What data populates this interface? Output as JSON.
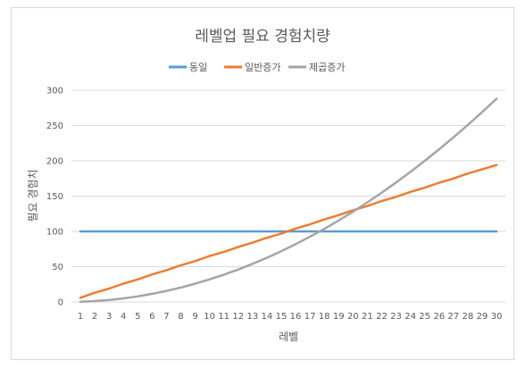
{
  "chart_data": {
    "type": "line",
    "title": "레벨업 필요 경험치량",
    "xlabel": "레벨",
    "ylabel": "필요 경험치",
    "x": [
      1,
      2,
      3,
      4,
      5,
      6,
      7,
      8,
      9,
      10,
      11,
      12,
      13,
      14,
      15,
      16,
      17,
      18,
      19,
      20,
      21,
      22,
      23,
      24,
      25,
      26,
      27,
      28,
      29,
      30
    ],
    "ylim": [
      0,
      300
    ],
    "yticks": [
      0,
      50,
      100,
      150,
      200,
      250,
      300
    ],
    "grid": "horizontal",
    "legend": "top",
    "series": [
      {
        "name": "동일",
        "color": "#5b9bd5",
        "values": [
          100,
          100,
          100,
          100,
          100,
          100,
          100,
          100,
          100,
          100,
          100,
          100,
          100,
          100,
          100,
          100,
          100,
          100,
          100,
          100,
          100,
          100,
          100,
          100,
          100,
          100,
          100,
          100,
          100,
          100
        ]
      },
      {
        "name": "일반증가",
        "color": "#ed7d31",
        "values": [
          6,
          13,
          19,
          26,
          32,
          39,
          45,
          52,
          58,
          65,
          71,
          78,
          84,
          91,
          97,
          104,
          110,
          117,
          123,
          130,
          136,
          143,
          149,
          156,
          162,
          169,
          175,
          182,
          188,
          194
        ]
      },
      {
        "name": "제곱증가",
        "color": "#a5a5a5",
        "values": [
          0.3,
          1.3,
          2.9,
          5.1,
          8,
          11.5,
          15.7,
          20.5,
          25.9,
          32,
          38.7,
          46,
          54,
          62.7,
          72,
          81.9,
          92.5,
          103.7,
          115.5,
          128,
          141.1,
          154.9,
          169.3,
          184.3,
          200,
          216.3,
          233.3,
          250.9,
          269.1,
          288
        ]
      }
    ]
  }
}
